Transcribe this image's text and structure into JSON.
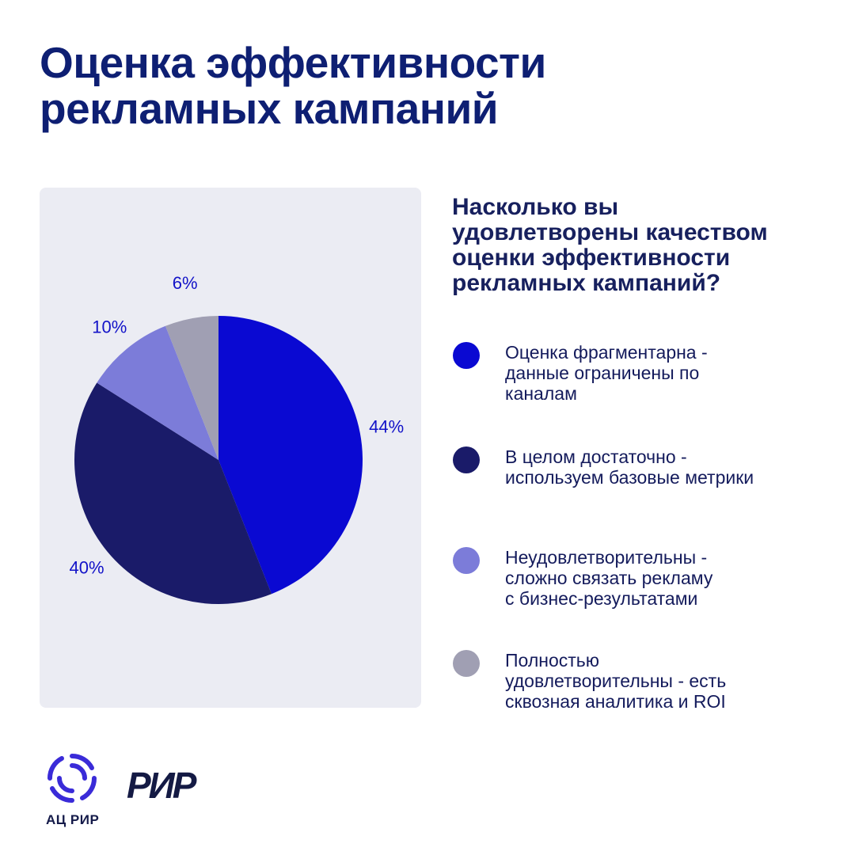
{
  "header": {
    "title_lines": [
      "Оценка эффективности",
      "рекламных кампаний"
    ]
  },
  "question": {
    "lines": [
      "Насколько вы",
      "удовлетворены качеством",
      "оценки эффективности",
      "рекламных кампаний?"
    ]
  },
  "colors": {
    "accent_blue": "#0a09d2",
    "dark_navy": "#1a1b69",
    "lavender": "#7c7cd9",
    "gray": "#a09fb3",
    "title": "#0e1f73",
    "panel_bg": "#ebecf3"
  },
  "chart_data": {
    "type": "pie",
    "title": "Насколько вы удовлетворены качеством оценки эффективности рекламных кампаний?",
    "start_angle_deg": 0,
    "direction": "clockwise",
    "slices": [
      {
        "label": "Оценка фрагментарна - данные ограничены по каналам",
        "value": 44,
        "value_label": "44%",
        "color": "#0a09d2"
      },
      {
        "label": "В целом достаточно - используем базовые метрики",
        "value": 40,
        "value_label": "40%",
        "color": "#1a1b69"
      },
      {
        "label": "Неудовлетворительны - сложно связать рекламу с бизнес-результатами",
        "value": 10,
        "value_label": "10%",
        "color": "#7c7cd9"
      },
      {
        "label": "Полностью удовлетворительны - есть сквозная аналитика и ROI",
        "value": 6,
        "value_label": "6%",
        "color": "#a09fb3"
      }
    ],
    "legend": [
      {
        "lines": [
          "Оценка фрагментарна -",
          "данные ограничены по",
          "каналам"
        ]
      },
      {
        "lines": [
          "В целом достаточно -",
          "используем базовые метрики"
        ]
      },
      {
        "lines": [
          "Неудовлетворительны -",
          "сложно связать рекламу",
          "с бизнес-результатами"
        ]
      },
      {
        "lines": [
          "Полностью",
          "удовлетворительны - есть",
          "сквозная аналитика и ROI"
        ]
      }
    ]
  },
  "footer": {
    "logo_label": "АЦ РИР",
    "logo2_text": "РИР"
  }
}
